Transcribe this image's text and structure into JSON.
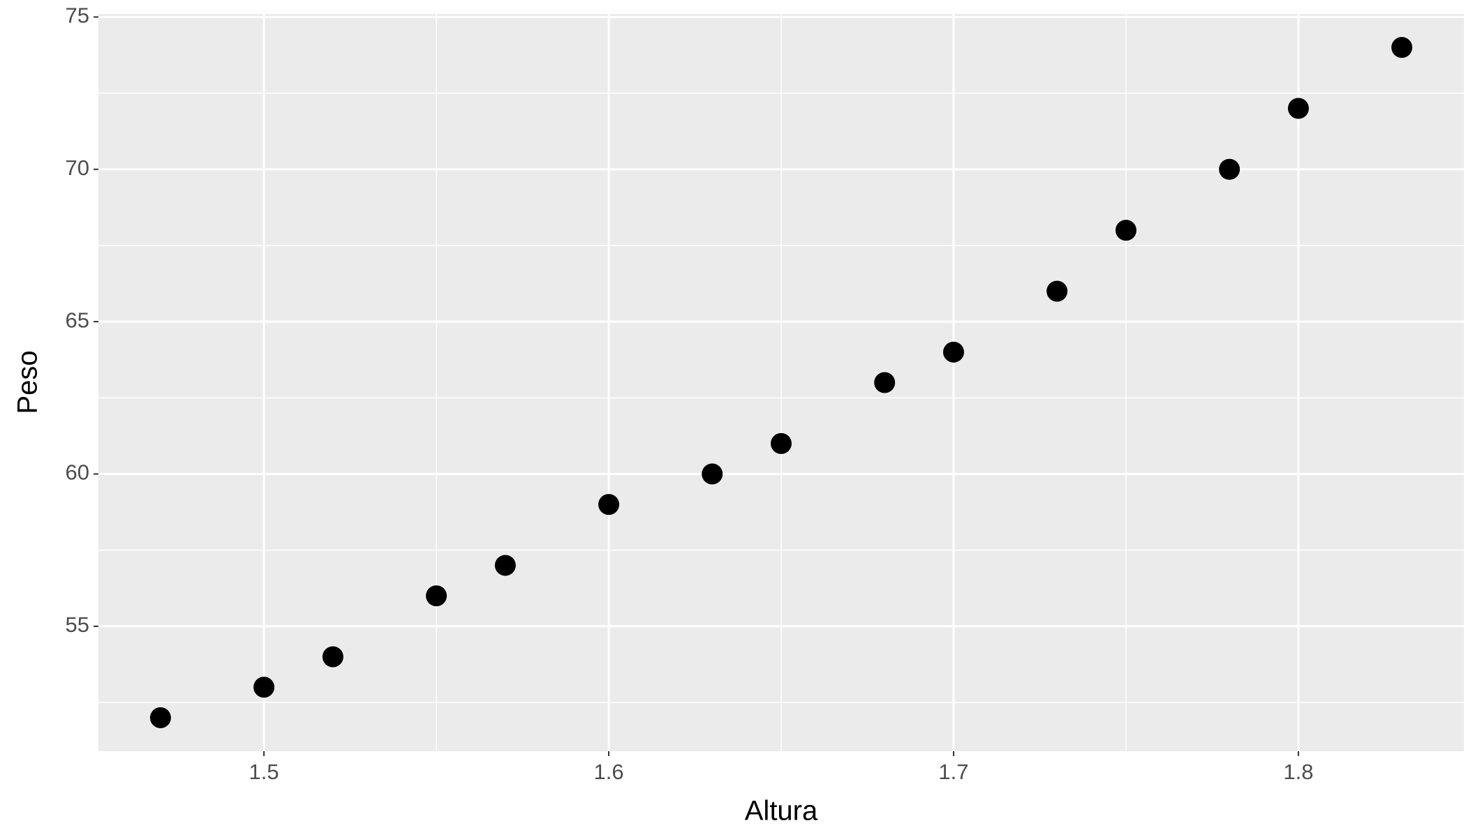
{
  "chart_data": {
    "type": "scatter",
    "x_label": "Altura",
    "y_label": "Peso",
    "x": [
      1.47,
      1.5,
      1.52,
      1.55,
      1.57,
      1.6,
      1.63,
      1.65,
      1.68,
      1.7,
      1.73,
      1.75,
      1.78,
      1.8,
      1.83
    ],
    "values": [
      52,
      53,
      54,
      56,
      57,
      59,
      60,
      61,
      63,
      64,
      66,
      68,
      70,
      72,
      74
    ],
    "color": "#000000",
    "xlim": [
      1.452,
      1.848
    ],
    "ylim": [
      50.9,
      75.1
    ],
    "xticks": [
      1.5,
      1.6,
      1.7,
      1.8
    ],
    "yticks": [
      55,
      60,
      65,
      70,
      75
    ],
    "xminorticks": [
      1.55,
      1.65,
      1.75
    ],
    "yminorticks": [
      52.5,
      57.5,
      62.5,
      67.5,
      72.5
    ],
    "grid": true
  }
}
